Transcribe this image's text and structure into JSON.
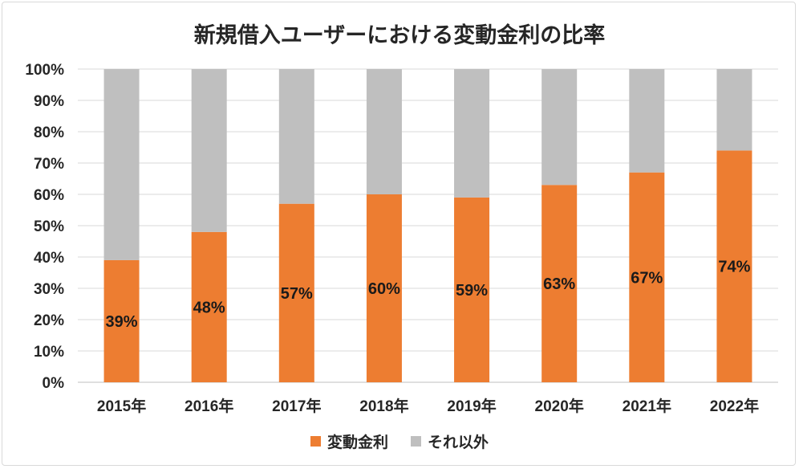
{
  "chart_data": {
    "type": "bar",
    "stacked": true,
    "title": "新規借入ユーザーにおける変動金利の比率",
    "categories": [
      "2015年",
      "2016年",
      "2017年",
      "2018年",
      "2019年",
      "2020年",
      "2021年",
      "2022年"
    ],
    "series": [
      {
        "name": "変動金利",
        "color": "#ed7d31",
        "values": [
          39,
          48,
          57,
          60,
          59,
          63,
          67,
          74
        ],
        "labels": [
          "39%",
          "48%",
          "57%",
          "60%",
          "59%",
          "63%",
          "67%",
          "74%"
        ]
      },
      {
        "name": "それ以外",
        "color": "#bfbfbf",
        "values": [
          61,
          52,
          43,
          40,
          41,
          37,
          33,
          26
        ]
      }
    ],
    "yticks": [
      "0%",
      "10%",
      "20%",
      "30%",
      "40%",
      "50%",
      "60%",
      "70%",
      "80%",
      "90%",
      "100%"
    ],
    "ylim": [
      0,
      100
    ],
    "grid": true,
    "legend_position": "bottom",
    "xlabel": "",
    "ylabel": ""
  }
}
